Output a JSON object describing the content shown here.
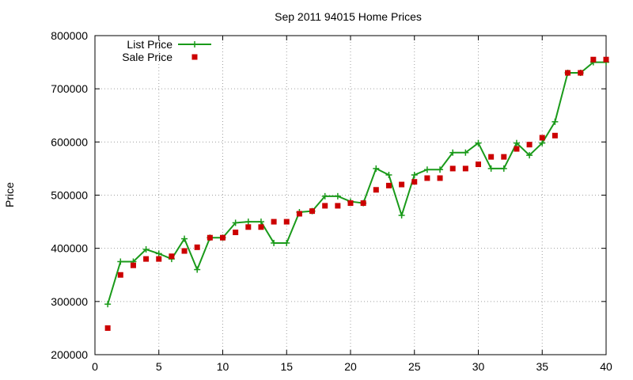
{
  "chart_data": {
    "type": "line",
    "title": "Sep 2011 94015 Home Prices",
    "xlabel": "",
    "ylabel": "Price",
    "xlim": [
      0,
      40
    ],
    "ylim": [
      200000,
      800000
    ],
    "x_ticks": [
      0,
      5,
      10,
      15,
      20,
      25,
      30,
      35,
      40
    ],
    "y_ticks": [
      200000,
      300000,
      400000,
      500000,
      600000,
      700000,
      800000
    ],
    "grid": true,
    "legend_position": "top-left",
    "series": [
      {
        "name": "List Price",
        "style": "line-with-plus-markers",
        "color": "#1a9a1a",
        "x": [
          1,
          2,
          3,
          4,
          5,
          6,
          7,
          8,
          9,
          10,
          11,
          12,
          13,
          14,
          15,
          16,
          17,
          18,
          19,
          20,
          21,
          22,
          23,
          24,
          25,
          26,
          27,
          28,
          29,
          30,
          31,
          32,
          33,
          34,
          35,
          36,
          37,
          38,
          39,
          40
        ],
        "values": [
          295000,
          375000,
          375000,
          398000,
          390000,
          380000,
          418000,
          360000,
          420000,
          420000,
          448000,
          450000,
          450000,
          410000,
          410000,
          468000,
          470000,
          498000,
          498000,
          488000,
          485000,
          550000,
          538000,
          462000,
          538000,
          548000,
          548000,
          580000,
          580000,
          598000,
          550000,
          550000,
          598000,
          575000,
          598000,
          638000,
          730000,
          730000,
          750000,
          750000
        ]
      },
      {
        "name": "Sale Price",
        "style": "square-markers",
        "color": "#cc0000",
        "x": [
          1,
          2,
          3,
          4,
          5,
          6,
          7,
          8,
          9,
          10,
          11,
          12,
          13,
          14,
          15,
          16,
          17,
          18,
          19,
          20,
          21,
          22,
          23,
          24,
          25,
          26,
          27,
          28,
          29,
          30,
          31,
          32,
          33,
          34,
          35,
          36,
          37,
          38,
          39,
          40
        ],
        "values": [
          250000,
          350000,
          368000,
          380000,
          380000,
          385000,
          395000,
          402000,
          420000,
          420000,
          430000,
          440000,
          440000,
          450000,
          450000,
          465000,
          470000,
          480000,
          480000,
          485000,
          485000,
          510000,
          518000,
          520000,
          525000,
          532000,
          532000,
          550000,
          550000,
          558000,
          572000,
          572000,
          587000,
          595000,
          608000,
          612000,
          730000,
          730000,
          755000,
          755000
        ]
      }
    ]
  }
}
